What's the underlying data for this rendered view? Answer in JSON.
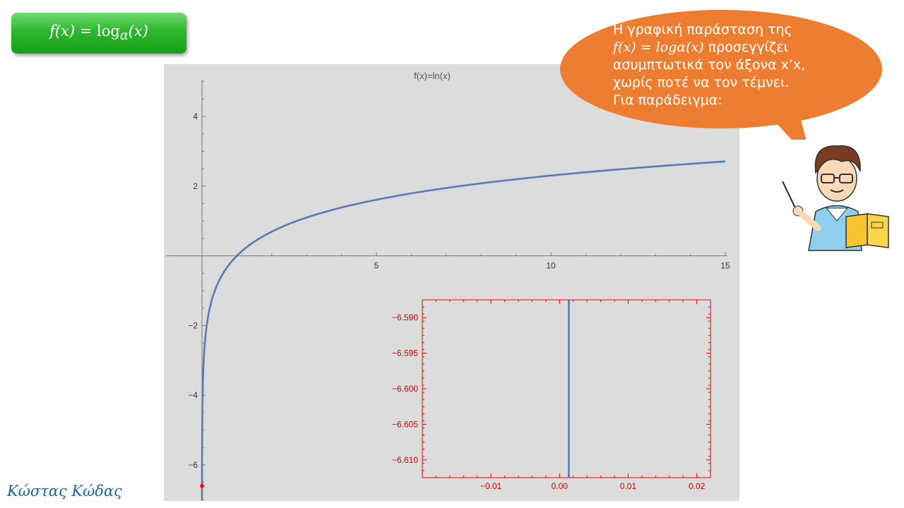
{
  "title_box": {
    "formula": "f(x) = logα(x)"
  },
  "speech_bubble": {
    "line1": "Η γραφική παράσταση της",
    "line2_math": "f(x) = logα(x)",
    "line2_text": " προσεγγίζει",
    "line3": "ασυμπτωτικά τον άξονα x’x,",
    "line4": "χωρίς ποτέ να τον τέμνει.",
    "line5": "Για παράδειγμα:"
  },
  "author": "Κώστας Κώδας",
  "chart_data": [
    {
      "type": "line",
      "title": "f(x)=ln(x)",
      "function": "ln(x)",
      "xlim": [
        -1,
        15
      ],
      "ylim": [
        -7,
        5
      ],
      "x_ticks": [
        "5",
        "10",
        "15"
      ],
      "y_ticks": [
        "4",
        "2",
        "−2",
        "−4",
        "−6"
      ],
      "colors": {
        "curve": "#5b7ab5",
        "highlight_point": "#ff0000"
      },
      "highlight_point": {
        "x": 0.00135,
        "y": -6.6
      }
    },
    {
      "type": "line",
      "function": "ln(x)",
      "xlim": [
        -0.02,
        0.022
      ],
      "ylim": [
        -6.6125,
        -6.5875
      ],
      "x_ticks": [
        "−0.01",
        "0.00",
        "0.01",
        "0.02"
      ],
      "y_ticks": [
        "−6.590",
        "−6.595",
        "−6.600",
        "−6.605",
        "−6.610"
      ],
      "colors": {
        "frame": "#ff0000",
        "curve": "#5b7ab5"
      },
      "curve_x": 0.00135
    }
  ]
}
